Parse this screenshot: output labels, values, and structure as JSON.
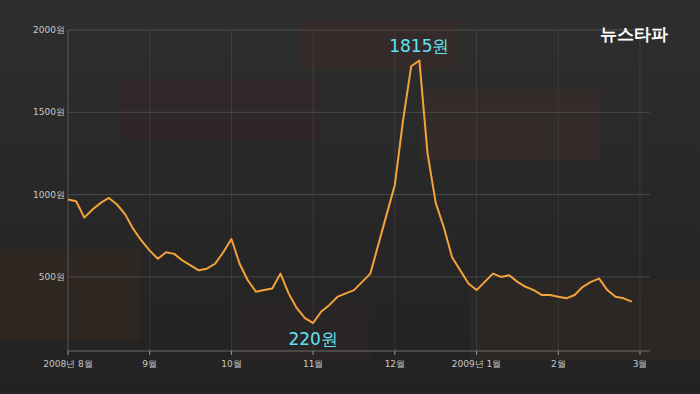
{
  "chart_data": {
    "type": "line",
    "credit": "뉴스타파",
    "categories": [
      "2008년 8월",
      null,
      null,
      null,
      null,
      null,
      null,
      null,
      null,
      null,
      "9월",
      null,
      null,
      null,
      null,
      null,
      null,
      null,
      null,
      null,
      "10월",
      null,
      null,
      null,
      null,
      null,
      null,
      null,
      null,
      null,
      "11월",
      null,
      null,
      null,
      null,
      null,
      null,
      null,
      null,
      null,
      "12월",
      null,
      null,
      null,
      null,
      null,
      null,
      null,
      null,
      null,
      "2009년 1월",
      null,
      null,
      null,
      null,
      null,
      null,
      null,
      null,
      null,
      "2월",
      null,
      null,
      null,
      null,
      null,
      null,
      null,
      null,
      null,
      "3월"
    ],
    "values": [
      970,
      960,
      860,
      910,
      950,
      980,
      940,
      880,
      790,
      720,
      660,
      610,
      650,
      640,
      600,
      570,
      540,
      550,
      580,
      650,
      730,
      580,
      480,
      410,
      420,
      430,
      520,
      400,
      310,
      250,
      220,
      290,
      330,
      380,
      400,
      420,
      470,
      520,
      700,
      880,
      1060,
      1450,
      1780,
      1815,
      1250,
      950,
      800,
      620,
      540,
      460,
      420,
      470,
      520,
      500,
      510,
      470,
      440,
      420,
      390,
      390,
      380,
      370,
      390,
      440,
      470,
      490,
      420,
      380,
      370,
      350,
      null
    ],
    "color": "#f5a23a",
    "ylim": [
      50,
      2000
    ],
    "yticks": [
      {
        "value": 500,
        "label": "500원"
      },
      {
        "value": 1000,
        "label": "1000원"
      },
      {
        "value": 1500,
        "label": "1500원"
      },
      {
        "value": 2000,
        "label": "2000원"
      }
    ],
    "grid": true,
    "annotations": [
      {
        "text": "1815원",
        "value": 1815
      },
      {
        "text": "220원",
        "value": 220
      }
    ]
  }
}
